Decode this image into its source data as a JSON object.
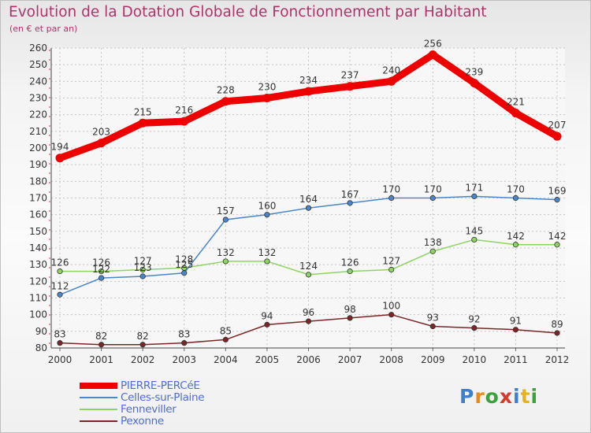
{
  "header": {
    "title": "Evolution de la Dotation Globale de Fonctionnement par Habitant",
    "subtitle": "(en € et par an)"
  },
  "logo": {
    "text": "Proxiti",
    "letters": [
      {
        "char": "P",
        "color": "#3a7fd0"
      },
      {
        "char": "r",
        "color": "#e88a1a"
      },
      {
        "char": "o",
        "color": "#3aa23a"
      },
      {
        "char": "x",
        "color": "#d83a2a"
      },
      {
        "char": "i",
        "color": "#3a7fd0"
      },
      {
        "char": "t",
        "color": "#e8b21a"
      },
      {
        "char": "i",
        "color": "#3aa23a"
      }
    ]
  },
  "chart_data": {
    "type": "line",
    "title": "Evolution de la Dotation Globale de Fonctionnement par Habitant",
    "subtitle": "(en € et par an)",
    "xlabel": "",
    "ylabel": "",
    "x": [
      "2000",
      "2001",
      "2002",
      "2003",
      "2004",
      "2005",
      "2006",
      "2007",
      "2008",
      "2009",
      "2010",
      "2011",
      "2012"
    ],
    "ylim": [
      80,
      260
    ],
    "yticks": [
      80,
      90,
      100,
      110,
      120,
      130,
      140,
      150,
      160,
      170,
      180,
      190,
      200,
      210,
      220,
      230,
      240,
      250,
      260
    ],
    "grid": true,
    "legend_position": "bottom-left",
    "series": [
      {
        "name": "PIERRE-PERCéE",
        "color": "#ee0000",
        "values": [
          194,
          203,
          215,
          216,
          228,
          230,
          234,
          237,
          240,
          256,
          239,
          221,
          207
        ]
      },
      {
        "name": "Celles-sur-Plaine",
        "color": "#4a86c8",
        "values": [
          112,
          122,
          123,
          125,
          157,
          160,
          164,
          167,
          170,
          170,
          171,
          170,
          169
        ]
      },
      {
        "name": "Fenneviller",
        "color": "#8ed464",
        "values": [
          126,
          126,
          127,
          128,
          132,
          132,
          124,
          126,
          127,
          138,
          145,
          142,
          142
        ]
      },
      {
        "name": "Pexonne",
        "color": "#7a2626",
        "values": [
          83,
          82,
          82,
          83,
          85,
          94,
          96,
          98,
          100,
          93,
          92,
          91,
          89
        ]
      }
    ]
  }
}
